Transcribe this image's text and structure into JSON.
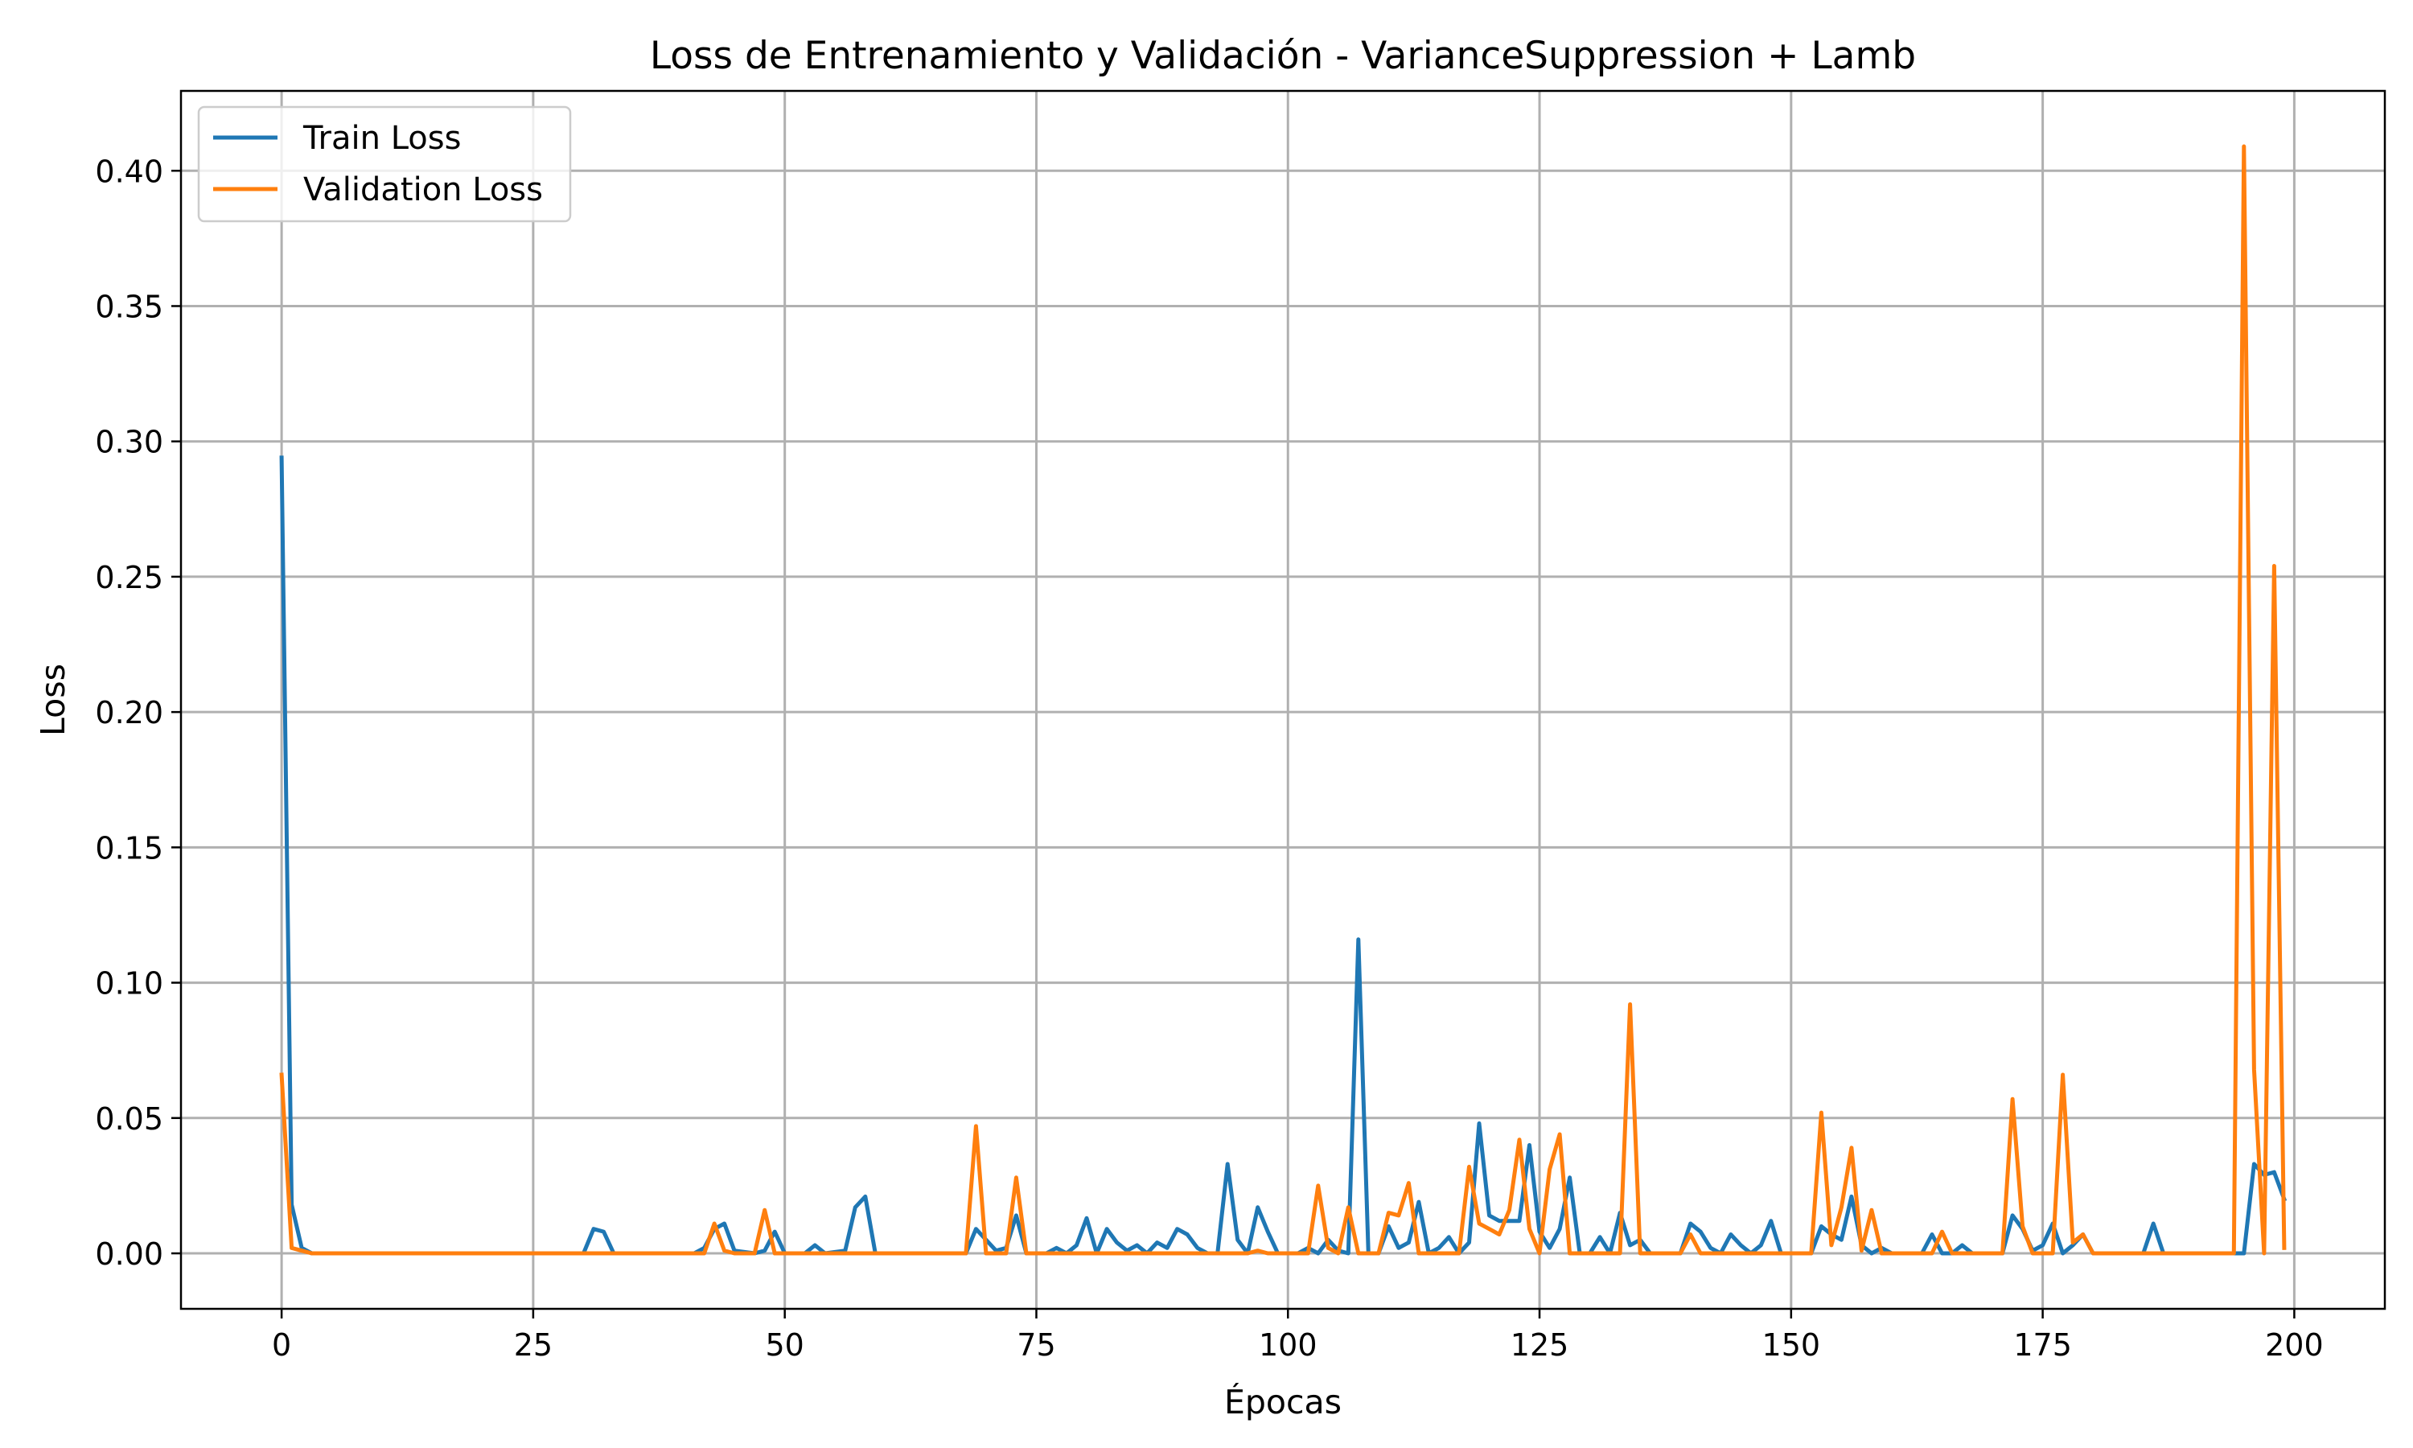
{
  "colors": {
    "train": "#1f77b4",
    "validation": "#ff7f0e",
    "grid": "#b0b0b0"
  },
  "chart_data": {
    "type": "line",
    "title": "Loss de Entrenamiento y Validación - VarianceSuppression + Lamb",
    "xlabel": "Épocas",
    "ylabel": "Loss",
    "xlim": [
      -10,
      209
    ],
    "ylim": [
      -0.0205,
      0.4295
    ],
    "xticks": [
      0,
      25,
      50,
      75,
      100,
      125,
      150,
      175,
      200
    ],
    "xtick_labels": [
      "0",
      "25",
      "50",
      "75",
      "100",
      "125",
      "150",
      "175",
      "200"
    ],
    "yticks": [
      0.0,
      0.05,
      0.1,
      0.15,
      0.2,
      0.25,
      0.3,
      0.35,
      0.4
    ],
    "ytick_labels": [
      "0.00",
      "0.05",
      "0.10",
      "0.15",
      "0.20",
      "0.25",
      "0.30",
      "0.35",
      "0.40"
    ],
    "grid": true,
    "legend_position": "top-left",
    "series": [
      {
        "name": "Train Loss",
        "color": "#1f77b4",
        "points": [
          [
            0,
            0.294
          ],
          [
            1,
            0.018
          ],
          [
            2,
            0.002
          ],
          [
            3,
            0
          ],
          [
            30,
            0
          ],
          [
            31,
            0.009
          ],
          [
            32,
            0.008
          ],
          [
            33,
            0
          ],
          [
            41,
            0
          ],
          [
            42,
            0.002
          ],
          [
            43,
            0.009
          ],
          [
            44,
            0.011
          ],
          [
            45,
            0.001
          ],
          [
            47,
            0
          ],
          [
            48,
            0.001
          ],
          [
            49,
            0.008
          ],
          [
            50,
            0
          ],
          [
            52,
            0
          ],
          [
            53,
            0.003
          ],
          [
            54,
            0
          ],
          [
            56,
            0.001
          ],
          [
            57,
            0.017
          ],
          [
            58,
            0.021
          ],
          [
            59,
            0
          ],
          [
            68,
            0
          ],
          [
            69,
            0.009
          ],
          [
            70,
            0.005
          ],
          [
            71,
            0.001
          ],
          [
            72,
            0.002
          ],
          [
            73,
            0.014
          ],
          [
            74,
            0
          ],
          [
            76,
            0
          ],
          [
            77,
            0.002
          ],
          [
            78,
            0
          ],
          [
            79,
            0.003
          ],
          [
            80,
            0.013
          ],
          [
            81,
            0
          ],
          [
            82,
            0.009
          ],
          [
            83,
            0.004
          ],
          [
            84,
            0.001
          ],
          [
            85,
            0.003
          ],
          [
            86,
            0
          ],
          [
            87,
            0.004
          ],
          [
            88,
            0.002
          ],
          [
            89,
            0.009
          ],
          [
            90,
            0.007
          ],
          [
            91,
            0.002
          ],
          [
            92,
            0
          ],
          [
            93,
            0
          ],
          [
            94,
            0.033
          ],
          [
            95,
            0.005
          ],
          [
            96,
            0
          ],
          [
            97,
            0.017
          ],
          [
            98,
            0.008
          ],
          [
            99,
            0
          ],
          [
            101,
            0
          ],
          [
            102,
            0.002
          ],
          [
            103,
            0
          ],
          [
            104,
            0.005
          ],
          [
            105,
            0.001
          ],
          [
            106,
            0
          ],
          [
            107,
            0.116
          ],
          [
            108,
            0
          ],
          [
            109,
            0
          ],
          [
            110,
            0.01
          ],
          [
            111,
            0.002
          ],
          [
            112,
            0.004
          ],
          [
            113,
            0.019
          ],
          [
            114,
            0
          ],
          [
            115,
            0.002
          ],
          [
            116,
            0.006
          ],
          [
            117,
            0
          ],
          [
            118,
            0.004
          ],
          [
            119,
            0.048
          ],
          [
            120,
            0.014
          ],
          [
            121,
            0.012
          ],
          [
            122,
            0.012
          ],
          [
            123,
            0.012
          ],
          [
            124,
            0.04
          ],
          [
            125,
            0.008
          ],
          [
            126,
            0.002
          ],
          [
            127,
            0.009
          ],
          [
            128,
            0.028
          ],
          [
            129,
            0
          ],
          [
            130,
            0
          ],
          [
            131,
            0.006
          ],
          [
            132,
            0
          ],
          [
            133,
            0.015
          ],
          [
            134,
            0.003
          ],
          [
            135,
            0.005
          ],
          [
            136,
            0
          ],
          [
            139,
            0
          ],
          [
            140,
            0.011
          ],
          [
            141,
            0.008
          ],
          [
            142,
            0.002
          ],
          [
            143,
            0
          ],
          [
            144,
            0.007
          ],
          [
            145,
            0.003
          ],
          [
            146,
            0
          ],
          [
            147,
            0.003
          ],
          [
            148,
            0.012
          ],
          [
            149,
            0
          ],
          [
            152,
            0
          ],
          [
            153,
            0.01
          ],
          [
            154,
            0.007
          ],
          [
            155,
            0.005
          ],
          [
            156,
            0.021
          ],
          [
            157,
            0.003
          ],
          [
            158,
            0
          ],
          [
            159,
            0.002
          ],
          [
            160,
            0
          ],
          [
            163,
            0
          ],
          [
            164,
            0.007
          ],
          [
            165,
            0
          ],
          [
            166,
            0
          ],
          [
            167,
            0.003
          ],
          [
            168,
            0
          ],
          [
            171,
            0
          ],
          [
            172,
            0.014
          ],
          [
            173,
            0.009
          ],
          [
            174,
            0.001
          ],
          [
            175,
            0.003
          ],
          [
            176,
            0.011
          ],
          [
            177,
            0
          ],
          [
            178,
            0.003
          ],
          [
            179,
            0.007
          ],
          [
            180,
            0
          ],
          [
            185,
            0
          ],
          [
            186,
            0.011
          ],
          [
            187,
            0
          ],
          [
            195,
            0
          ],
          [
            196,
            0.033
          ],
          [
            197,
            0.029
          ],
          [
            198,
            0.03
          ],
          [
            199,
            0.02
          ]
        ]
      },
      {
        "name": "Validation Loss",
        "color": "#ff7f0e",
        "points": [
          [
            0,
            0.066
          ],
          [
            1,
            0.002
          ],
          [
            2,
            0.001
          ],
          [
            3,
            0
          ],
          [
            42,
            0
          ],
          [
            43,
            0.011
          ],
          [
            44,
            0.001
          ],
          [
            45,
            0
          ],
          [
            47,
            0
          ],
          [
            48,
            0.016
          ],
          [
            49,
            0
          ],
          [
            68,
            0
          ],
          [
            69,
            0.047
          ],
          [
            70,
            0
          ],
          [
            72,
            0
          ],
          [
            73,
            0.028
          ],
          [
            74,
            0
          ],
          [
            96,
            0
          ],
          [
            97,
            0.001
          ],
          [
            98,
            0
          ],
          [
            102,
            0
          ],
          [
            103,
            0.025
          ],
          [
            104,
            0.002
          ],
          [
            105,
            0
          ],
          [
            106,
            0.017
          ],
          [
            107,
            0
          ],
          [
            108,
            0
          ],
          [
            109,
            0
          ],
          [
            110,
            0.015
          ],
          [
            111,
            0.014
          ],
          [
            112,
            0.026
          ],
          [
            113,
            0
          ],
          [
            117,
            0
          ],
          [
            118,
            0.032
          ],
          [
            119,
            0.011
          ],
          [
            120,
            0.009
          ],
          [
            121,
            0.007
          ],
          [
            122,
            0.016
          ],
          [
            123,
            0.042
          ],
          [
            124,
            0.009
          ],
          [
            125,
            0
          ],
          [
            126,
            0.031
          ],
          [
            127,
            0.044
          ],
          [
            128,
            0
          ],
          [
            132,
            0
          ],
          [
            133,
            0
          ],
          [
            134,
            0.092
          ],
          [
            135,
            0
          ],
          [
            139,
            0
          ],
          [
            140,
            0.007
          ],
          [
            141,
            0
          ],
          [
            152,
            0
          ],
          [
            153,
            0.052
          ],
          [
            154,
            0.003
          ],
          [
            155,
            0.017
          ],
          [
            156,
            0.039
          ],
          [
            157,
            0.001
          ],
          [
            158,
            0.016
          ],
          [
            159,
            0
          ],
          [
            164,
            0
          ],
          [
            165,
            0.008
          ],
          [
            166,
            0
          ],
          [
            171,
            0
          ],
          [
            172,
            0.057
          ],
          [
            173,
            0.01
          ],
          [
            174,
            0
          ],
          [
            176,
            0
          ],
          [
            177,
            0.066
          ],
          [
            178,
            0.004
          ],
          [
            179,
            0.007
          ],
          [
            180,
            0
          ],
          [
            194,
            0
          ],
          [
            195,
            0.409
          ],
          [
            196,
            0.068
          ],
          [
            197,
            0
          ],
          [
            198,
            0.254
          ],
          [
            199,
            0.002
          ]
        ]
      }
    ]
  }
}
